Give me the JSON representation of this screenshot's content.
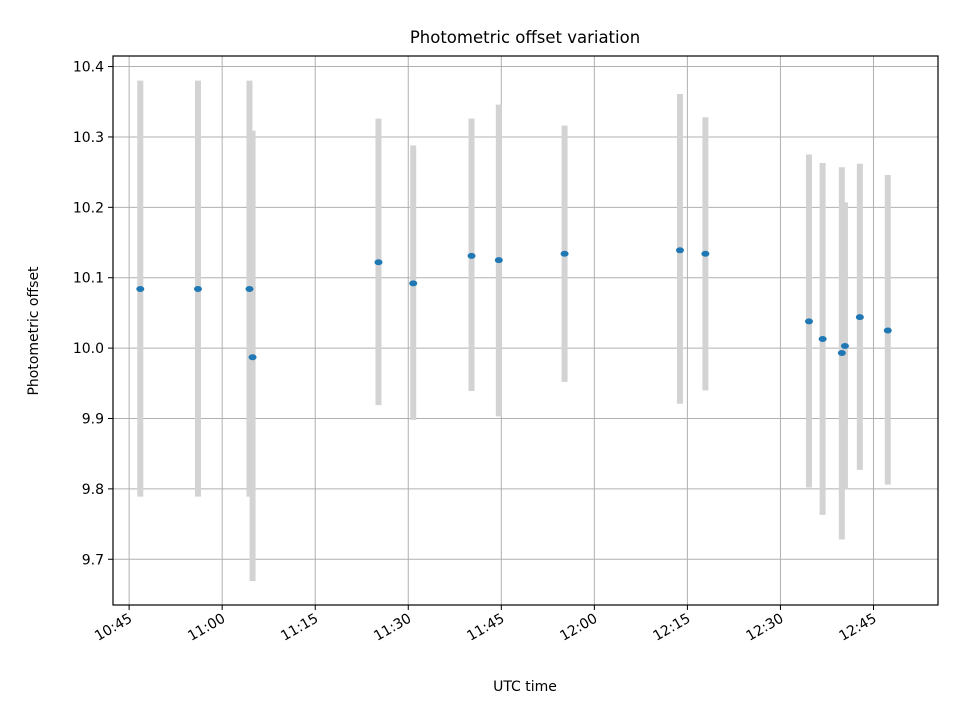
{
  "chart_data": {
    "type": "scatter",
    "title": "Photometric offset variation",
    "xlabel": "UTC time",
    "ylabel": "Photometric offset",
    "grid": true,
    "xlim_minutes": [
      642.4,
      775.4
    ],
    "ylim": [
      9.635,
      10.415
    ],
    "x_ticks": [
      {
        "minutes": 645,
        "label": "10:45"
      },
      {
        "minutes": 660,
        "label": "11:00"
      },
      {
        "minutes": 675,
        "label": "11:15"
      },
      {
        "minutes": 690,
        "label": "11:30"
      },
      {
        "minutes": 705,
        "label": "11:45"
      },
      {
        "minutes": 720,
        "label": "12:00"
      },
      {
        "minutes": 735,
        "label": "12:15"
      },
      {
        "minutes": 750,
        "label": "12:30"
      },
      {
        "minutes": 765,
        "label": "12:45"
      }
    ],
    "y_ticks": [
      9.7,
      9.8,
      9.9,
      10.0,
      10.1,
      10.2,
      10.3,
      10.4
    ],
    "y_tick_labels": [
      "9.7",
      "9.8",
      "9.9",
      "10.0",
      "10.1",
      "10.2",
      "10.3",
      "10.4"
    ],
    "point_color": "#1f77b4",
    "errorbar_color": "#d3d3d3",
    "points": [
      {
        "minutes": 646.8,
        "value": 10.084,
        "low": 9.789,
        "high": 10.38
      },
      {
        "minutes": 656.1,
        "value": 10.084,
        "low": 9.789,
        "high": 10.38
      },
      {
        "minutes": 664.4,
        "value": 10.084,
        "low": 9.789,
        "high": 10.38
      },
      {
        "minutes": 664.9,
        "value": 9.987,
        "low": 9.669,
        "high": 10.309
      },
      {
        "minutes": 685.2,
        "value": 10.122,
        "low": 9.919,
        "high": 10.326
      },
      {
        "minutes": 690.8,
        "value": 10.092,
        "low": 9.898,
        "high": 10.288
      },
      {
        "minutes": 700.2,
        "value": 10.131,
        "low": 9.939,
        "high": 10.326
      },
      {
        "minutes": 704.6,
        "value": 10.125,
        "low": 9.903,
        "high": 10.346
      },
      {
        "minutes": 715.2,
        "value": 10.134,
        "low": 9.952,
        "high": 10.316
      },
      {
        "minutes": 733.8,
        "value": 10.139,
        "low": 9.921,
        "high": 10.361
      },
      {
        "minutes": 737.9,
        "value": 10.134,
        "low": 9.94,
        "high": 10.328
      },
      {
        "minutes": 754.6,
        "value": 10.038,
        "low": 9.802,
        "high": 10.275
      },
      {
        "minutes": 756.8,
        "value": 10.013,
        "low": 9.763,
        "high": 10.263
      },
      {
        "minutes": 759.9,
        "value": 9.993,
        "low": 9.728,
        "high": 10.257
      },
      {
        "minutes": 760.4,
        "value": 10.003,
        "low": 9.799,
        "high": 10.207
      },
      {
        "minutes": 762.8,
        "value": 10.044,
        "low": 9.827,
        "high": 10.262
      },
      {
        "minutes": 767.3,
        "value": 10.025,
        "low": 9.806,
        "high": 10.246
      }
    ]
  }
}
